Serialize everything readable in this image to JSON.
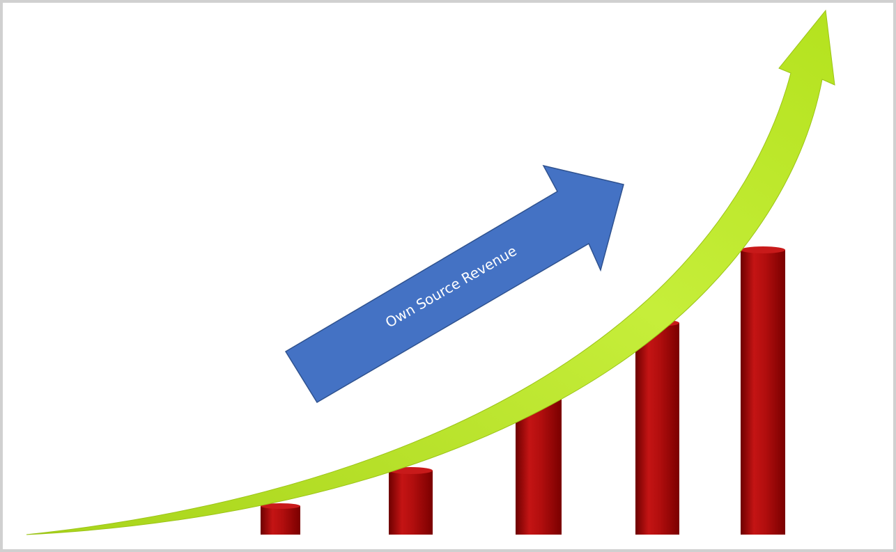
{
  "arrow_label": "Own Source Revenue"
}
